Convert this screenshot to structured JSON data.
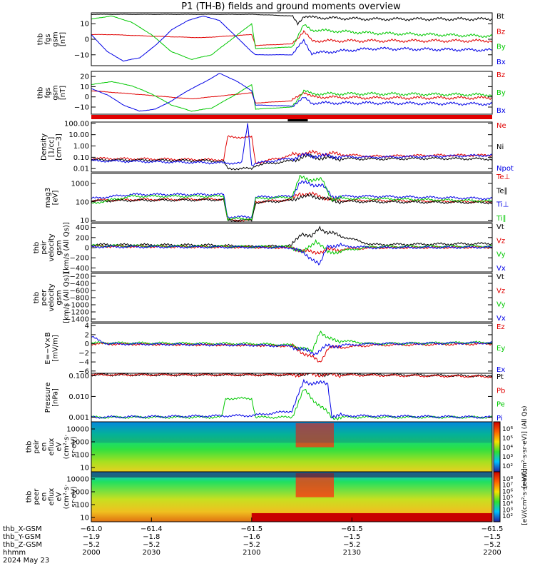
{
  "title": "P1 (TH-B) fields and ground moments overview",
  "colors": {
    "black": "#000000",
    "red": "#e00000",
    "green": "#00c800",
    "blue": "#0000e6"
  },
  "chart_data": [
    {
      "type": "line",
      "ylabel": [
        "thb",
        "fgs",
        "gsm",
        "[nT]"
      ],
      "yticks": [
        "10",
        "0",
        "−10"
      ],
      "ylim": [
        -17,
        17
      ],
      "series": [
        {
          "name": "Bt",
          "color": "#000000",
          "x": [
            2000,
            2080,
            2081,
            2100,
            2103,
            2106,
            2110,
            2140,
            2200
          ],
          "y": [
            16,
            16,
            16,
            15,
            10,
            15,
            14,
            13,
            13
          ]
        },
        {
          "name": "Bz",
          "color": "#e00000",
          "x": [
            2000,
            2010,
            2030,
            2055,
            2080,
            2082,
            2100,
            2106,
            2110,
            2140,
            2200
          ],
          "y": [
            3,
            3,
            2,
            1,
            3,
            -4,
            -3,
            5,
            -1,
            -1,
            -1
          ]
        },
        {
          "name": "By",
          "color": "#00c800",
          "x": [
            2000,
            2010,
            2020,
            2030,
            2040,
            2050,
            2060,
            2070,
            2080,
            2082,
            2100,
            2106,
            2110,
            2140,
            2200
          ],
          "y": [
            13,
            15,
            11,
            3,
            -8,
            -13,
            -10,
            0,
            10,
            -6,
            -5,
            9,
            6,
            4,
            2
          ]
        },
        {
          "name": "Bx",
          "color": "#0000e6",
          "x": [
            2000,
            2008,
            2016,
            2024,
            2032,
            2040,
            2048,
            2056,
            2064,
            2072,
            2080,
            2082,
            2100,
            2106,
            2110,
            2140,
            2200
          ],
          "y": [
            3,
            -8,
            -14,
            -12,
            -4,
            6,
            12,
            15,
            12,
            2,
            -8,
            -10,
            -10,
            -1,
            -9,
            -6,
            -7
          ]
        }
      ]
    },
    {
      "type": "line",
      "ylabel": [
        "thb",
        "fgs",
        "gsm",
        "[nT]"
      ],
      "yticks": [
        "20",
        "10",
        "0",
        "−10"
      ],
      "ylim": [
        -17,
        25
      ],
      "series": [
        {
          "name": "Bz",
          "color": "#e00000",
          "x": [
            2000,
            2020,
            2050,
            2080,
            2082,
            2100,
            2106,
            2110,
            2140,
            2200
          ],
          "y": [
            6,
            3,
            -2,
            4,
            -6,
            -4,
            5,
            0,
            -1,
            -1
          ]
        },
        {
          "name": "By",
          "color": "#00c800",
          "x": [
            2000,
            2010,
            2020,
            2030,
            2040,
            2050,
            2060,
            2070,
            2080,
            2082,
            2100,
            2106,
            2110,
            2140,
            2200
          ],
          "y": [
            12,
            15,
            11,
            3,
            -8,
            -14,
            -11,
            0,
            12,
            -12,
            -10,
            6,
            3,
            3,
            2
          ]
        },
        {
          "name": "Bx",
          "color": "#0000e6",
          "x": [
            2000,
            2008,
            2016,
            2024,
            2032,
            2040,
            2048,
            2056,
            2064,
            2072,
            2080,
            2082,
            2100,
            2106,
            2110,
            2140,
            2200
          ],
          "y": [
            8,
            2,
            -8,
            -14,
            -12,
            -4,
            6,
            14,
            23,
            16,
            6,
            -8,
            -9,
            -1,
            -6,
            -6,
            -7
          ]
        }
      ]
    },
    {
      "type": "line",
      "yscale": "log",
      "ylabel": [
        "Density",
        "[1/cc]",
        "[cm−3]"
      ],
      "yticks": [
        "100.00",
        "10.00",
        "1.00",
        "0.10",
        "0.01"
      ],
      "ylim": [
        0.005,
        130
      ],
      "series": [
        {
          "name": "Ne",
          "color": "#e00000",
          "x": [
            2000,
            2060,
            2066,
            2068,
            2080,
            2082,
            2100,
            2106,
            2120,
            2140,
            2170,
            2200
          ],
          "y": [
            0.08,
            0.06,
            0.06,
            6,
            6,
            0.03,
            0.15,
            0.25,
            0.2,
            0.12,
            0.15,
            0.15
          ]
        },
        {
          "name": "Ni",
          "color": "#000000",
          "x": [
            2000,
            2060,
            2066,
            2068,
            2080,
            2082,
            2100,
            2106,
            2120,
            2140,
            2170,
            2200
          ],
          "y": [
            0.06,
            0.05,
            0.04,
            0.01,
            0.01,
            0.02,
            0.05,
            0.12,
            0.08,
            0.07,
            0.08,
            0.07
          ]
        },
        {
          "name": "Npot",
          "color": "#0000e6",
          "x": [
            2000,
            2075,
            2078,
            2080,
            2082,
            2100,
            2106,
            2120,
            2140,
            2170,
            2200
          ],
          "y": [
            0.05,
            0.03,
            100,
            0.02,
            0.03,
            0.08,
            0.15,
            0.12,
            0.1,
            0.12,
            0.15
          ]
        }
      ]
    },
    {
      "type": "line",
      "yscale": "log",
      "ylabel": [
        "mag3",
        "[eV]"
      ],
      "yticks": [
        "1000",
        "100",
        "10"
      ],
      "ylim": [
        8,
        3500
      ],
      "series": [
        {
          "name": "Te⊥",
          "color": "#e00000",
          "x": [
            2000,
            2020,
            2066,
            2068,
            2080,
            2082,
            2100,
            2104,
            2115,
            2120,
            2140,
            2200
          ],
          "y": [
            120,
            130,
            140,
            10,
            10,
            100,
            130,
            300,
            200,
            120,
            120,
            100
          ]
        },
        {
          "name": "Te∥",
          "color": "#000000",
          "x": [
            2000,
            2020,
            2066,
            2068,
            2080,
            2082,
            2100,
            2104,
            2115,
            2120,
            2140,
            2200
          ],
          "y": [
            110,
            120,
            130,
            10,
            10,
            90,
            120,
            200,
            180,
            110,
            100,
            90
          ]
        },
        {
          "name": "Ti⊥",
          "color": "#0000e6",
          "x": [
            2000,
            2020,
            2066,
            2068,
            2080,
            2082,
            2100,
            2104,
            2115,
            2120,
            2140,
            2200
          ],
          "y": [
            150,
            250,
            250,
            15,
            15,
            180,
            200,
            1100,
            800,
            200,
            200,
            150
          ]
        },
        {
          "name": "Ti∥",
          "color": "#00c800",
          "x": [
            2000,
            2020,
            2066,
            2068,
            2080,
            2082,
            2100,
            2104,
            2115,
            2120,
            2140,
            2200
          ],
          "y": [
            80,
            200,
            200,
            12,
            12,
            150,
            180,
            2000,
            1500,
            150,
            150,
            110
          ]
        }
      ]
    },
    {
      "type": "line",
      "ylabel": [
        "thb",
        "peir",
        "velocity",
        "gsm",
        "[km/s (All Qs)]"
      ],
      "yticks": [
        "400",
        "200",
        "0",
        "−200",
        "−400"
      ],
      "ylim": [
        -480,
        480
      ],
      "series": [
        {
          "name": "Vt",
          "color": "#000000",
          "x": [
            2000,
            2060,
            2080,
            2100,
            2105,
            2110,
            2114,
            2118,
            2140,
            2200
          ],
          "y": [
            60,
            50,
            20,
            40,
            300,
            200,
            400,
            300,
            60,
            80
          ]
        },
        {
          "name": "Vz",
          "color": "#e00000",
          "x": [
            2000,
            2080,
            2100,
            2110,
            2118,
            2140,
            2200
          ],
          "y": [
            30,
            10,
            0,
            -100,
            -50,
            0,
            10
          ]
        },
        {
          "name": "Vy",
          "color": "#00c800",
          "x": [
            2000,
            2080,
            2100,
            2106,
            2112,
            2118,
            2140,
            2200
          ],
          "y": [
            40,
            20,
            20,
            -100,
            150,
            -100,
            20,
            30
          ]
        },
        {
          "name": "Vx",
          "color": "#0000e6",
          "x": [
            2000,
            2080,
            2100,
            2110,
            2114,
            2118,
            2140,
            2200
          ],
          "y": [
            20,
            10,
            0,
            -200,
            -350,
            50,
            0,
            10
          ]
        }
      ]
    },
    {
      "type": "line",
      "ylabel": [
        "thb",
        "peer",
        "velocity",
        "gsm",
        "[km/s (All Qs)]"
      ],
      "yticks": [
        "−200",
        "−400",
        "−600",
        "−800",
        "−1000",
        "−1200",
        "−1400"
      ],
      "ylim": [
        -1480,
        -120
      ],
      "series": [
        {
          "name": "Vt",
          "color": "#000000",
          "x": [],
          "y": []
        },
        {
          "name": "Vz",
          "color": "#e00000",
          "x": [],
          "y": []
        },
        {
          "name": "Vy",
          "color": "#00c800",
          "x": [],
          "y": []
        },
        {
          "name": "Vx",
          "color": "#0000e6",
          "x": [],
          "y": []
        }
      ]
    },
    {
      "type": "line",
      "ylabel": [
        "E=−V×B",
        "[mV/m]"
      ],
      "yticks": [
        "4",
        "2",
        "0",
        "−2",
        "−4",
        "−6"
      ],
      "ylim": [
        -6.5,
        4.5
      ],
      "series": [
        {
          "name": "Ez",
          "color": "#e00000",
          "x": [
            2000,
            2080,
            2100,
            2106,
            2110,
            2114,
            2118,
            2140,
            2200
          ],
          "y": [
            0,
            -0.3,
            -0.5,
            -2,
            -3,
            -4,
            -1,
            -0.3,
            0
          ]
        },
        {
          "name": "Ey",
          "color": "#00c800",
          "x": [
            2000,
            2080,
            2100,
            2106,
            2110,
            2114,
            2118,
            2140,
            2200
          ],
          "y": [
            0.2,
            0,
            -0.3,
            -1,
            -2,
            3,
            1,
            0,
            0.3
          ]
        },
        {
          "name": "Ex",
          "color": "#0000e6",
          "x": [
            2000,
            2008,
            2080,
            2100,
            2106,
            2112,
            2118,
            2140,
            2200
          ],
          "y": [
            1.5,
            0,
            -0.3,
            -0.5,
            -1.5,
            -2,
            -0.5,
            0,
            0.2
          ]
        }
      ]
    },
    {
      "type": "line",
      "yscale": "log",
      "ylabel": [
        "Pressure",
        "[nPa]"
      ],
      "yticks": [
        "0.100",
        "0.010",
        "0.001"
      ],
      "ylim": [
        0.0006,
        0.13
      ],
      "series": [
        {
          "name": "Pt",
          "color": "#000000",
          "x": [
            2000,
            2100,
            2106,
            2120,
            2200
          ],
          "y": [
            0.11,
            0.11,
            0.13,
            0.12,
            0.095
          ]
        },
        {
          "name": "Pb",
          "color": "#e00000",
          "x": [
            2000,
            2100,
            2106,
            2120,
            2200
          ],
          "y": [
            0.11,
            0.11,
            0.12,
            0.11,
            0.09
          ]
        },
        {
          "name": "Pe",
          "color": "#00c800",
          "x": [
            2000,
            2065,
            2067,
            2080,
            2082,
            2100,
            2106,
            2120,
            2200
          ],
          "y": [
            0.001,
            0.001,
            0.008,
            0.008,
            0.001,
            0.001,
            0.02,
            0.001,
            0.001
          ]
        },
        {
          "name": "Pi",
          "color": "#0000e6",
          "x": [
            2000,
            2080,
            2100,
            2106,
            2118,
            2120,
            2200
          ],
          "y": [
            0.001,
            0.0012,
            0.002,
            0.05,
            0.04,
            0.0012,
            0.001
          ]
        }
      ]
    },
    {
      "type": "heatmap",
      "ylabel": [
        "thb",
        "peir",
        "en",
        "eflux",
        "eV",
        "(cm²·s·",
        "sr·eV)"
      ],
      "yticks": [
        "10000",
        "1000",
        "100",
        "10"
      ],
      "colorbar_label": "[eV/(cm²·s·sr·eV)] (All Qs)",
      "colorbar_ticks": [
        "10⁶",
        "10⁵",
        "10⁴",
        "10³",
        "10²"
      ]
    },
    {
      "type": "heatmap",
      "ylabel": [
        "thb",
        "peer",
        "en",
        "eflux",
        "eV",
        "(cm²·s·",
        "sr·eV)"
      ],
      "yticks": [
        "10000",
        "1000",
        "100",
        "10"
      ],
      "colorbar_label": "[eV/(cm²·s·sr·eV)]",
      "colorbar_ticks": [
        "10⁸",
        "10⁷",
        "10⁶",
        "10⁵",
        "10⁴",
        "10³",
        "10²"
      ]
    }
  ],
  "time_axis": {
    "xlim": [
      2000,
      2200
    ],
    "rows": [
      {
        "label": "thb_X-GSM",
        "ticks": [
          "−61.0",
          "−61.4",
          "−61.5",
          "−61.5",
          "−61.5"
        ]
      },
      {
        "label": "thb_Y-GSM",
        "ticks": [
          "−1.9",
          "−1.8",
          "−1.6",
          "−1.5",
          "−1.5"
        ]
      },
      {
        "label": "thb_Z-GSM",
        "ticks": [
          "−5.2",
          "−5.2",
          "−5.2",
          "−5.2",
          "−5.2"
        ]
      },
      {
        "label": "hhmm",
        "ticks": [
          "2000",
          "2030",
          "2100",
          "2130",
          "2200"
        ]
      }
    ],
    "date": "2024 May 23"
  }
}
